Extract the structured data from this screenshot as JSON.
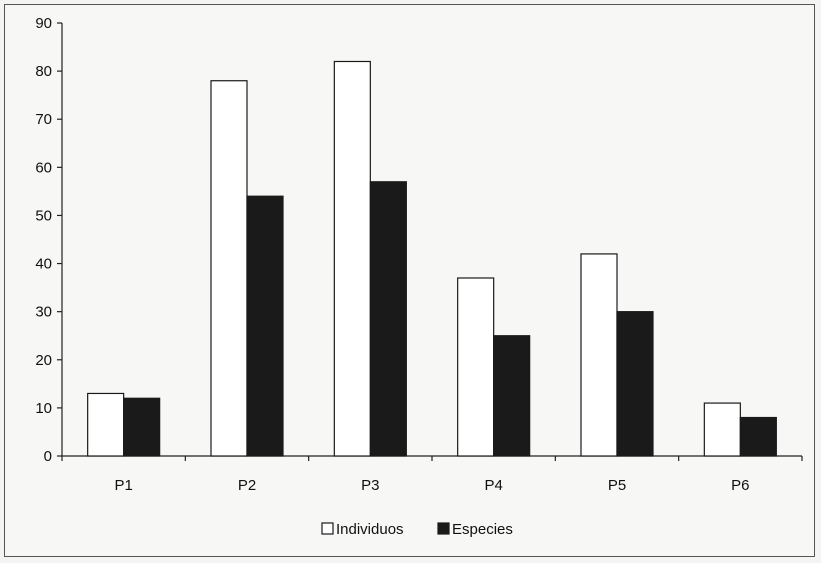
{
  "chart_data": {
    "type": "bar",
    "categories": [
      "P1",
      "P2",
      "P3",
      "P4",
      "P5",
      "P6"
    ],
    "series": [
      {
        "name": "Individuos",
        "values": [
          13,
          78,
          82,
          37,
          42,
          11
        ],
        "color": "#ffffff"
      },
      {
        "name": "Especies",
        "values": [
          12,
          54,
          57,
          25,
          30,
          8
        ],
        "color": "#1a1a1a"
      }
    ],
    "ylim": [
      0,
      90
    ],
    "yticks": [
      0,
      10,
      20,
      30,
      40,
      50,
      60,
      70,
      80,
      90
    ],
    "title": "",
    "xlabel": "",
    "ylabel": "",
    "grid": false,
    "legend_position": "bottom"
  }
}
